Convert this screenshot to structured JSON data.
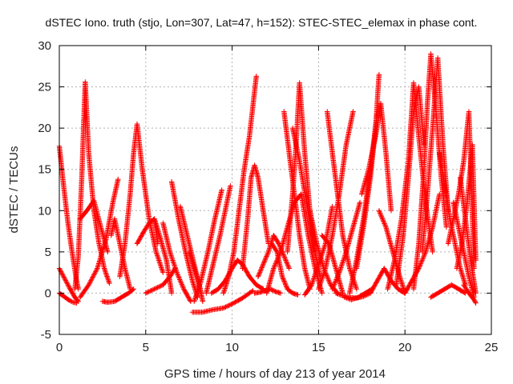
{
  "chart_data": {
    "type": "scatter",
    "title": "dSTEC Iono. truth (stjo, Lon=307, Lat=47, h=152): STEC-STEC_elemax in phase cont.",
    "xlabel": "GPS time / hours of day 213 of year 2014",
    "ylabel": "dSTEC  / TECUs",
    "xlim": [
      0,
      25
    ],
    "ylim": [
      -5,
      30
    ],
    "xticks": [
      "0",
      "5",
      "10",
      "15",
      "20",
      "25"
    ],
    "yticks": [
      "-5",
      "0",
      "5",
      "10",
      "15",
      "20",
      "25",
      "30"
    ],
    "grid": true,
    "marker": "+",
    "color": "#ff0000",
    "arcs": [
      {
        "x": [
          0.0,
          0.25,
          0.5,
          0.75,
          1.0,
          1.1
        ],
        "y": [
          17.8,
          13.0,
          8.5,
          4.8,
          1.5,
          0.5
        ]
      },
      {
        "x": [
          0.0,
          0.3,
          0.6,
          0.9,
          1.1
        ],
        "y": [
          3.0,
          1.8,
          0.6,
          -0.5,
          -1.0
        ]
      },
      {
        "x": [
          0.0,
          0.2,
          0.4,
          0.6,
          0.8,
          1.0
        ],
        "y": [
          0.0,
          -0.3,
          -0.6,
          -0.9,
          -1.1,
          -1.2
        ]
      },
      {
        "x": [
          0.9,
          1.1,
          1.3,
          1.4,
          1.5,
          1.7,
          2.0,
          2.3,
          2.6,
          2.9
        ],
        "y": [
          0.5,
          4.5,
          14.0,
          20.0,
          25.6,
          17.0,
          10.0,
          6.0,
          3.0,
          1.2
        ]
      },
      {
        "x": [
          1.2,
          1.7,
          2.2,
          2.7,
          3.1,
          3.4
        ],
        "y": [
          -0.5,
          1.0,
          3.0,
          6.5,
          11.0,
          13.8
        ]
      },
      {
        "x": [
          1.2,
          1.6,
          2.0,
          2.4,
          2.8
        ],
        "y": [
          9.0,
          10.0,
          11.2,
          8.0,
          5.0
        ]
      },
      {
        "x": [
          2.5,
          2.8,
          3.2,
          3.6,
          4.0,
          4.3
        ],
        "y": [
          -1.0,
          -1.1,
          -1.0,
          -0.5,
          0.0,
          0.5
        ]
      },
      {
        "x": [
          3.0,
          3.2,
          3.5,
          3.8,
          4.1
        ],
        "y": [
          7.0,
          9.0,
          6.0,
          3.0,
          0.5
        ]
      },
      {
        "x": [
          3.5,
          3.8,
          4.1,
          4.3,
          4.5,
          4.8,
          5.2,
          5.6,
          6.0
        ],
        "y": [
          2.0,
          6.0,
          12.0,
          17.0,
          20.5,
          15.0,
          9.0,
          5.0,
          2.5
        ]
      },
      {
        "x": [
          4.5,
          4.9,
          5.2,
          5.5,
          5.7
        ],
        "y": [
          6.0,
          7.5,
          8.5,
          9.0,
          6.0
        ]
      },
      {
        "x": [
          5.0,
          5.5,
          6.0,
          6.4,
          6.7
        ],
        "y": [
          0.0,
          0.5,
          1.0,
          2.0,
          3.0
        ]
      },
      {
        "x": [
          5.5,
          5.8,
          6.2,
          6.5
        ],
        "y": [
          9.0,
          7.0,
          4.0,
          0.0
        ]
      },
      {
        "x": [
          6.0,
          6.4,
          6.8,
          7.2,
          7.6
        ],
        "y": [
          8.5,
          5.0,
          2.5,
          0.5,
          -1.0
        ]
      },
      {
        "x": [
          6.5,
          6.9,
          7.3,
          7.7,
          8.0
        ],
        "y": [
          13.5,
          9.0,
          5.0,
          1.5,
          -0.5
        ]
      },
      {
        "x": [
          7.0,
          7.4,
          7.8,
          8.2
        ],
        "y": [
          10.5,
          7.0,
          3.5,
          0.0
        ]
      },
      {
        "x": [
          7.5,
          7.8,
          8.1,
          8.3
        ],
        "y": [
          5.0,
          3.0,
          1.0,
          -1.0
        ]
      },
      {
        "x": [
          7.8,
          8.2,
          8.6,
          9.0,
          9.4
        ],
        "y": [
          -1.0,
          1.5,
          5.0,
          9.0,
          12.5
        ]
      },
      {
        "x": [
          8.5,
          8.9,
          9.3,
          9.6,
          9.9
        ],
        "y": [
          0.0,
          3.5,
          7.0,
          10.0,
          13.0
        ]
      },
      {
        "x": [
          7.7,
          8.3,
          8.9,
          9.5,
          10.0,
          10.6,
          11.2
        ],
        "y": [
          -2.3,
          -2.3,
          -2.0,
          -1.8,
          -1.3,
          -0.6,
          0.3
        ]
      },
      {
        "x": [
          8.8,
          9.2,
          9.6,
          10.0,
          10.3,
          10.6,
          11.0,
          11.4,
          11.8
        ],
        "y": [
          0.0,
          0.5,
          1.5,
          3.0,
          4.0,
          3.5,
          2.0,
          1.0,
          0.5
        ]
      },
      {
        "x": [
          9.5,
          9.8,
          10.1,
          10.4,
          10.7,
          11.0,
          11.4
        ],
        "y": [
          0.0,
          2.0,
          5.0,
          10.0,
          15.0,
          19.0,
          26.3
        ]
      },
      {
        "x": [
          10.6,
          10.9,
          11.1,
          11.3,
          11.5,
          11.8,
          12.1
        ],
        "y": [
          3.0,
          9.0,
          14.0,
          15.5,
          14.0,
          10.0,
          6.0
        ]
      },
      {
        "x": [
          11.3,
          11.6,
          11.9,
          12.2,
          12.5,
          12.8
        ],
        "y": [
          0.0,
          0.1,
          0.3,
          0.5,
          0.2,
          0.0
        ]
      },
      {
        "x": [
          11.5,
          11.8,
          12.1,
          12.4,
          12.7,
          13.0,
          13.3
        ],
        "y": [
          2.0,
          3.5,
          5.0,
          7.0,
          6.0,
          4.5,
          3.0
        ]
      },
      {
        "x": [
          12.0,
          12.4,
          12.8,
          13.2,
          13.6,
          14.0
        ],
        "y": [
          0.0,
          3.0,
          5.0,
          8.0,
          11.0,
          12.0
        ]
      },
      {
        "x": [
          12.3,
          12.6,
          12.9,
          13.2,
          13.5,
          13.8
        ],
        "y": [
          6.0,
          5.0,
          2.0,
          0.5,
          0.0,
          -0.2
        ]
      },
      {
        "x": [
          13.0,
          13.3,
          13.6,
          13.9,
          14.2,
          14.5
        ],
        "y": [
          22.0,
          17.0,
          12.0,
          7.0,
          3.0,
          0.5
        ]
      },
      {
        "x": [
          13.2,
          13.5,
          13.7,
          13.9,
          14.2,
          14.5,
          14.8
        ],
        "y": [
          5.0,
          12.0,
          18.0,
          25.5,
          17.0,
          10.0,
          5.0
        ]
      },
      {
        "x": [
          13.5,
          13.9,
          14.3,
          14.7,
          15.1
        ],
        "y": [
          20.0,
          16.0,
          11.0,
          6.0,
          2.0
        ]
      },
      {
        "x": [
          14.0,
          14.4,
          14.8,
          15.2
        ],
        "y": [
          12.0,
          7.0,
          3.0,
          0.0
        ]
      },
      {
        "x": [
          14.2,
          14.6,
          15.0,
          15.4,
          15.8
        ],
        "y": [
          -0.2,
          1.0,
          3.5,
          6.0,
          10.5
        ]
      },
      {
        "x": [
          14.5,
          14.9,
          15.3,
          15.7,
          16.1
        ],
        "y": [
          10.0,
          6.0,
          3.0,
          1.0,
          0.0
        ]
      },
      {
        "x": [
          15.0,
          15.4,
          15.8,
          16.2,
          16.6,
          17.0
        ],
        "y": [
          0.5,
          3.0,
          7.0,
          12.0,
          18.0,
          22.0
        ]
      },
      {
        "x": [
          15.2,
          15.6,
          16.0,
          16.4
        ],
        "y": [
          7.0,
          6.0,
          3.0,
          0.0
        ]
      },
      {
        "x": [
          15.5,
          15.8,
          16.1,
          16.4,
          16.8,
          17.2
        ],
        "y": [
          22.0,
          17.0,
          12.0,
          7.0,
          3.0,
          0.5
        ]
      },
      {
        "x": [
          15.8,
          16.2,
          16.6,
          17.0,
          17.4
        ],
        "y": [
          0.5,
          2.5,
          5.0,
          8.0,
          11.0
        ]
      },
      {
        "x": [
          16.0,
          16.4,
          16.8,
          17.2,
          17.6,
          18.0
        ],
        "y": [
          0.0,
          -0.3,
          -0.5,
          -0.6,
          -0.4,
          0.0
        ]
      },
      {
        "x": [
          16.5,
          16.9,
          17.3,
          17.7,
          18.1
        ],
        "y": [
          -0.5,
          -0.8,
          -0.5,
          0.0,
          0.5
        ]
      },
      {
        "x": [
          16.8,
          17.2,
          17.6,
          18.0,
          18.4
        ],
        "y": [
          0.0,
          4.0,
          9.0,
          15.0,
          22.0
        ]
      },
      {
        "x": [
          17.2,
          17.6,
          18.0,
          18.3,
          18.5
        ],
        "y": [
          3.0,
          8.0,
          14.0,
          20.0,
          26.5
        ]
      },
      {
        "x": [
          17.5,
          17.9,
          18.3,
          18.6,
          18.9,
          19.2
        ],
        "y": [
          12.0,
          15.0,
          19.0,
          23.0,
          17.0,
          10.0
        ]
      },
      {
        "x": [
          18.0,
          18.4,
          18.8,
          19.2,
          19.6,
          20.0
        ],
        "y": [
          0.0,
          1.5,
          3.0,
          1.5,
          0.5,
          0.0
        ]
      },
      {
        "x": [
          18.5,
          18.9,
          19.3,
          19.7,
          20.0
        ],
        "y": [
          10.0,
          8.0,
          5.0,
          2.0,
          0.0
        ]
      },
      {
        "x": [
          19.0,
          19.4,
          19.8,
          20.2,
          20.5,
          20.8,
          21.2,
          21.6
        ],
        "y": [
          0.5,
          4.0,
          9.0,
          16.0,
          25.5,
          19.0,
          11.0,
          5.0
        ]
      },
      {
        "x": [
          19.5,
          19.9,
          20.2,
          20.5,
          20.8,
          21.1
        ],
        "y": [
          1.0,
          7.0,
          14.0,
          22.0,
          25.0,
          18.0
        ]
      },
      {
        "x": [
          20.0,
          20.4,
          20.8,
          21.2,
          21.6,
          22.0
        ],
        "y": [
          0.0,
          1.5,
          3.0,
          5.0,
          8.0,
          12.0
        ]
      },
      {
        "x": [
          20.5,
          20.8,
          21.1,
          21.3,
          21.5,
          21.8,
          22.1,
          22.4
        ],
        "y": [
          0.5,
          6.0,
          15.0,
          23.0,
          29.0,
          22.0,
          14.0,
          8.0
        ]
      },
      {
        "x": [
          21.0,
          21.3,
          21.6,
          21.9,
          22.2,
          22.5
        ],
        "y": [
          5.0,
          12.0,
          20.0,
          28.5,
          18.0,
          10.0
        ]
      },
      {
        "x": [
          21.5,
          21.9,
          22.3,
          22.7,
          23.1,
          23.5
        ],
        "y": [
          -0.5,
          0.0,
          0.5,
          1.0,
          0.5,
          0.0
        ]
      },
      {
        "x": [
          22.0,
          22.3,
          22.6,
          22.9,
          23.2,
          23.5
        ],
        "y": [
          17.0,
          13.0,
          9.0,
          6.0,
          3.0,
          1.0
        ]
      },
      {
        "x": [
          22.5,
          22.8,
          23.1,
          23.4,
          23.7,
          24.0
        ],
        "y": [
          6.0,
          9.0,
          12.0,
          16.0,
          22.0,
          3.0
        ]
      },
      {
        "x": [
          22.8,
          23.1,
          23.4,
          23.7,
          24.0
        ],
        "y": [
          11.0,
          8.0,
          5.0,
          2.0,
          -0.5
        ]
      },
      {
        "x": [
          23.0,
          23.3,
          23.6,
          23.9,
          24.1
        ],
        "y": [
          3.0,
          6.0,
          11.0,
          18.0,
          4.0
        ]
      },
      {
        "x": [
          23.2,
          23.5,
          23.8,
          24.1
        ],
        "y": [
          14.0,
          9.0,
          4.0,
          0.0
        ]
      },
      {
        "x": [
          23.4,
          23.7,
          24.0,
          24.1
        ],
        "y": [
          1.0,
          0.0,
          -0.8,
          -1.2
        ]
      }
    ]
  }
}
